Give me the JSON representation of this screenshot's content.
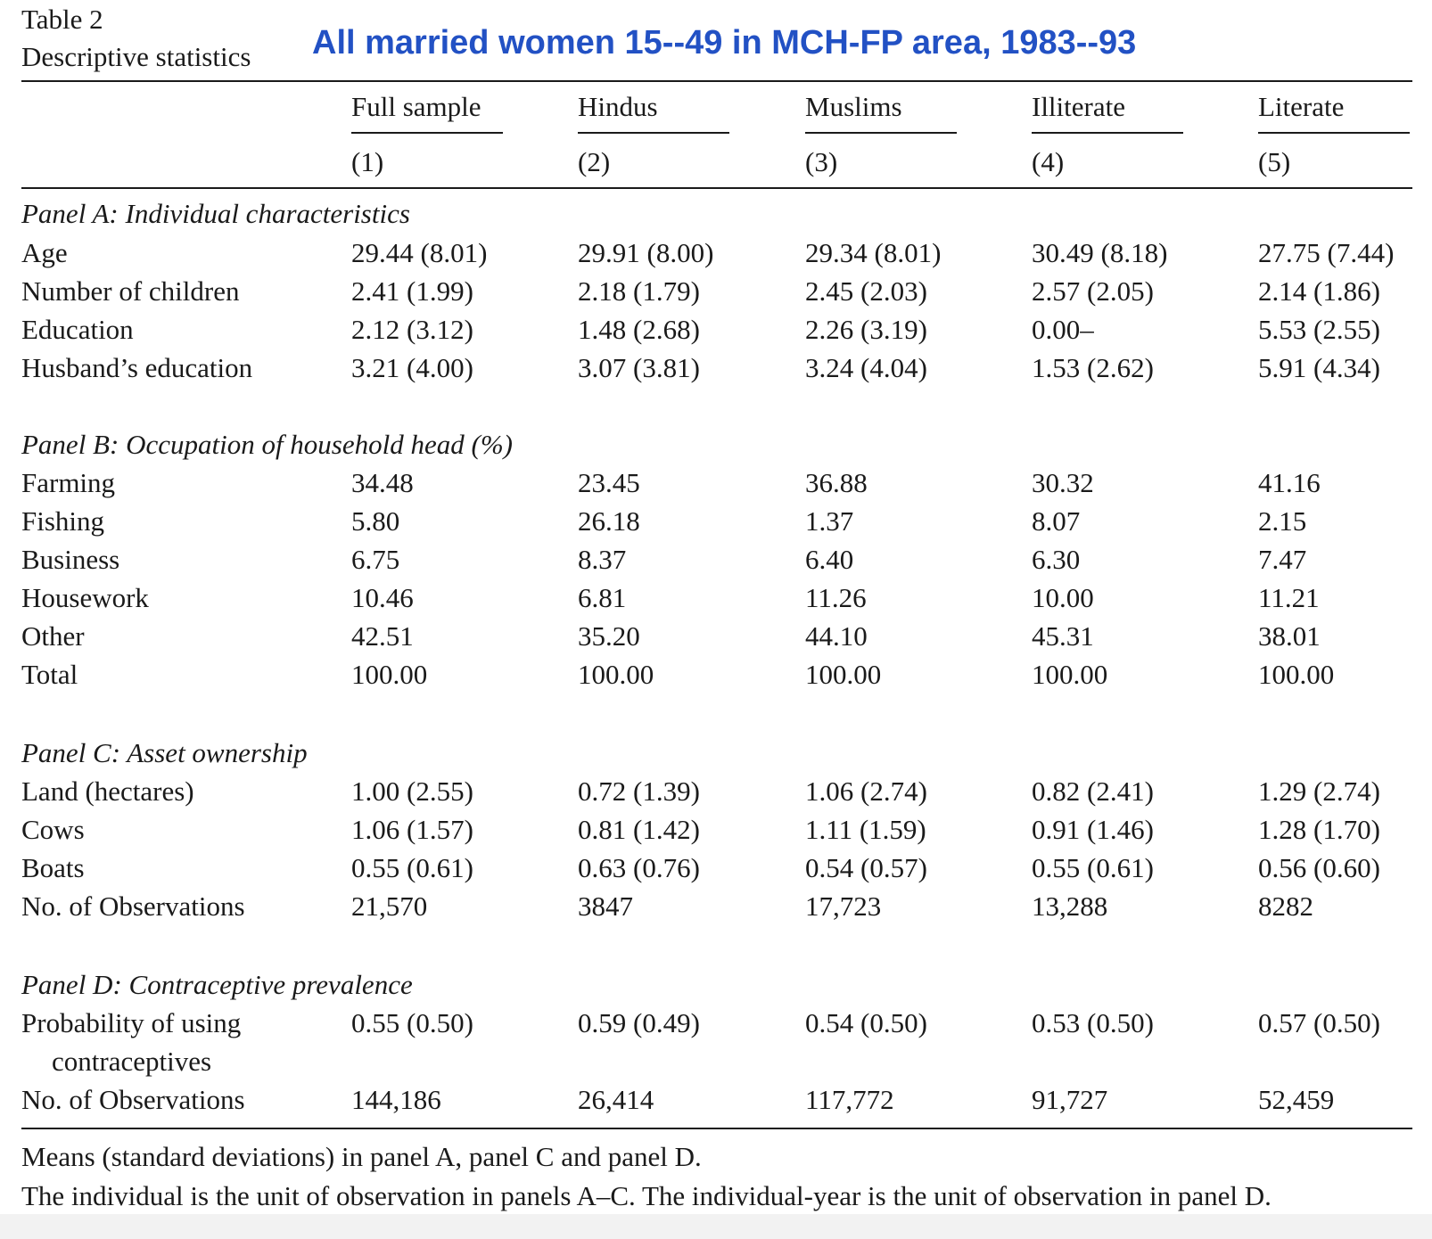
{
  "table_label": "Table 2",
  "table_caption": "Descriptive statistics",
  "overlay_title": "All married women 15--49 in MCH-FP area, 1983--93",
  "columns": [
    {
      "name": "Full sample",
      "number": "(1)"
    },
    {
      "name": "Hindus",
      "number": "(2)"
    },
    {
      "name": "Muslims",
      "number": "(3)"
    },
    {
      "name": "Illiterate",
      "number": "(4)"
    },
    {
      "name": "Literate",
      "number": "(5)"
    }
  ],
  "panels": [
    {
      "title": "Panel A: Individual characteristics",
      "rows": [
        {
          "label": "Age",
          "values": [
            "29.44 (8.01)",
            "29.91 (8.00)",
            "29.34 (8.01)",
            "30.49 (8.18)",
            "27.75 (7.44)"
          ]
        },
        {
          "label": "Number of children",
          "values": [
            "2.41 (1.99)",
            "2.18 (1.79)",
            "2.45 (2.03)",
            "2.57 (2.05)",
            "2.14 (1.86)"
          ]
        },
        {
          "label": "Education",
          "values": [
            "2.12 (3.12)",
            "1.48 (2.68)",
            "2.26 (3.19)",
            "0.00–",
            "5.53 (2.55)"
          ]
        },
        {
          "label": "Husband’s education",
          "values": [
            "3.21 (4.00)",
            "3.07 (3.81)",
            "3.24 (4.04)",
            "1.53 (2.62)",
            "5.91 (4.34)"
          ]
        }
      ]
    },
    {
      "title": "Panel B: Occupation of household head (%)",
      "rows": [
        {
          "label": "Farming",
          "values": [
            "34.48",
            "23.45",
            "36.88",
            "30.32",
            "41.16"
          ]
        },
        {
          "label": "Fishing",
          "values": [
            "5.80",
            "26.18",
            "1.37",
            "8.07",
            "2.15"
          ]
        },
        {
          "label": "Business",
          "values": [
            "6.75",
            "8.37",
            "6.40",
            "6.30",
            "7.47"
          ]
        },
        {
          "label": "Housework",
          "values": [
            "10.46",
            "6.81",
            "11.26",
            "10.00",
            "11.21"
          ]
        },
        {
          "label": "Other",
          "values": [
            "42.51",
            "35.20",
            "44.10",
            "45.31",
            "38.01"
          ]
        },
        {
          "label": "Total",
          "values": [
            "100.00",
            "100.00",
            "100.00",
            "100.00",
            "100.00"
          ]
        }
      ]
    },
    {
      "title": "Panel C: Asset ownership",
      "rows": [
        {
          "label": "Land (hectares)",
          "values": [
            "1.00 (2.55)",
            "0.72 (1.39)",
            "1.06 (2.74)",
            "0.82 (2.41)",
            "1.29 (2.74)"
          ]
        },
        {
          "label": "Cows",
          "values": [
            "1.06 (1.57)",
            "0.81 (1.42)",
            "1.11 (1.59)",
            "0.91 (1.46)",
            "1.28 (1.70)"
          ]
        },
        {
          "label": "Boats",
          "values": [
            "0.55 (0.61)",
            "0.63 (0.76)",
            "0.54 (0.57)",
            "0.55 (0.61)",
            "0.56 (0.60)"
          ]
        },
        {
          "label": "No. of Observations",
          "values": [
            "21,570",
            "3847",
            "17,723",
            "13,288",
            "8282"
          ]
        }
      ]
    },
    {
      "title": "Panel D: Contraceptive prevalence",
      "rows": [
        {
          "label": "Probability of using",
          "label_cont": "contraceptives",
          "values": [
            "0.55 (0.50)",
            "0.59 (0.49)",
            "0.54 (0.50)",
            "0.53 (0.50)",
            "0.57 (0.50)"
          ]
        },
        {
          "label": "No. of Observations",
          "values": [
            "144,186",
            "26,414",
            "117,772",
            "91,727",
            "52,459"
          ]
        }
      ]
    }
  ],
  "notes": [
    "Means (standard deviations) in panel A, panel C and panel D.",
    "The individual is the unit of observation in panels A–C. The individual-year is the unit of observation in panel D."
  ]
}
